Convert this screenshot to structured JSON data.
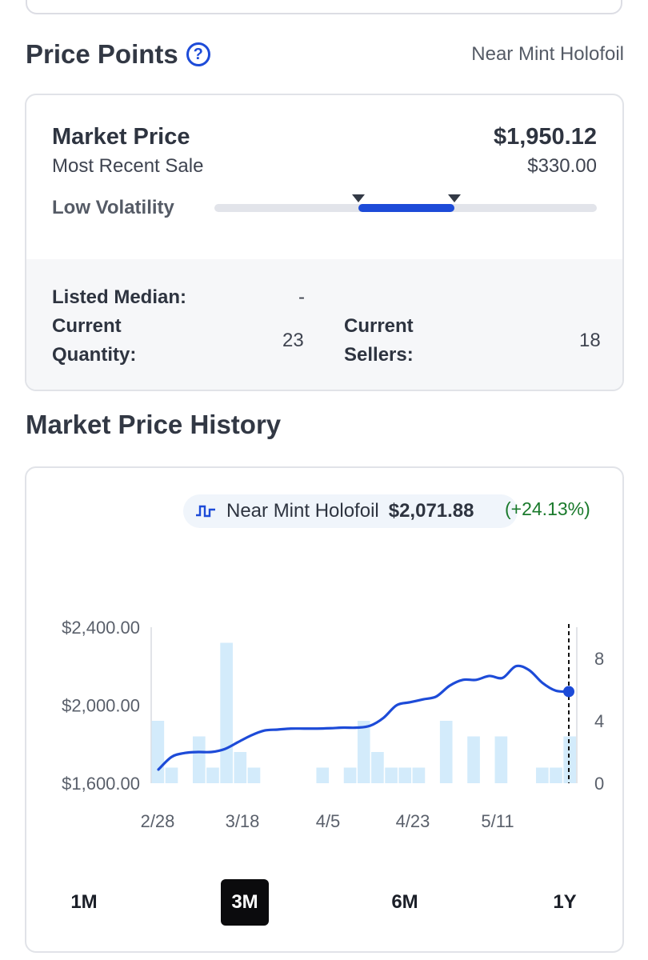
{
  "price_points": {
    "title": "Price Points",
    "help_icon": "question-circle-icon",
    "condition": "Near Mint Holofoil",
    "market_price_label": "Market Price",
    "market_price_value": "$1,950.12",
    "recent_sale_label": "Most Recent Sale",
    "recent_sale_value": "$330.00",
    "volatility_label": "Low Volatility",
    "volatility_range": [
      0.375,
      0.625
    ],
    "listed_median_label": "Listed Median:",
    "listed_median_value": "-",
    "current_quantity_label": "Current Quantity:",
    "current_quantity_value": "23",
    "current_sellers_label": "Current Sellers:",
    "current_sellers_value": "18"
  },
  "history": {
    "title": "Market Price History",
    "legend_icon": "step-line-icon",
    "legend_name": "Near Mint Holofoil",
    "legend_price": "$2,071.88",
    "legend_change": "(+24.13%)",
    "ranges": [
      "1M",
      "3M",
      "6M",
      "1Y"
    ],
    "active_range": "3M"
  },
  "chart_data": {
    "type": "line",
    "y_ticks": [
      "$2,400.00",
      "$2,000.00",
      "$1,600.00"
    ],
    "ylim": [
      1600,
      2400
    ],
    "y2_ticks": [
      "8",
      "4",
      "0"
    ],
    "y2lim": [
      0,
      10
    ],
    "x_ticks": [
      "2/28",
      "3/18",
      "4/5",
      "4/23",
      "5/11"
    ],
    "line_color": "#1d4bd8",
    "bar_color": "#d3ebfb",
    "series": [
      {
        "values": [
          1670,
          1735,
          1755,
          1760,
          1760,
          1775,
          1810,
          1845,
          1870,
          1875,
          1880,
          1880,
          1880,
          1882,
          1885,
          1885,
          1895,
          1935,
          2000,
          2015,
          2030,
          2045,
          2100,
          2130,
          2130,
          2150,
          2140,
          2200,
          2180,
          2115,
          2075,
          2070
        ]
      }
    ],
    "volume_bars": [
      4,
      1,
      0,
      3,
      1,
      9,
      2,
      1,
      0,
      0,
      0,
      0,
      1,
      0,
      1,
      4,
      2,
      1,
      1,
      1,
      0,
      4,
      0,
      3,
      0,
      3,
      0,
      0,
      1,
      1,
      3
    ]
  }
}
